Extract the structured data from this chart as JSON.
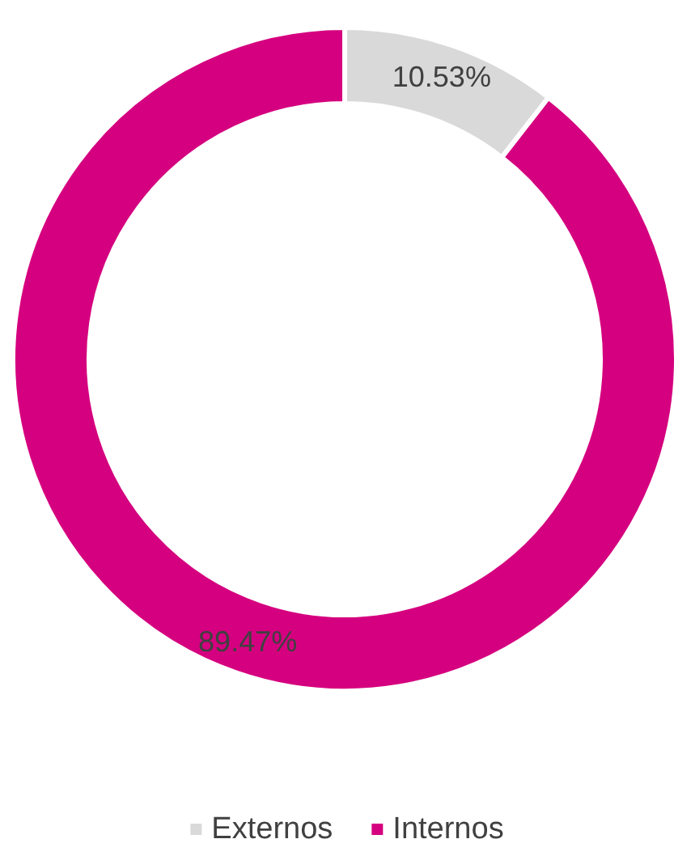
{
  "chart_data": {
    "type": "donut",
    "categories": [
      "Externos",
      "Internos"
    ],
    "values": [
      10.53,
      89.47
    ],
    "colors": [
      "#d9d9d9",
      "#d5007f"
    ],
    "value_labels": [
      "10.53%",
      "89.47%"
    ],
    "legend": "bottom"
  }
}
